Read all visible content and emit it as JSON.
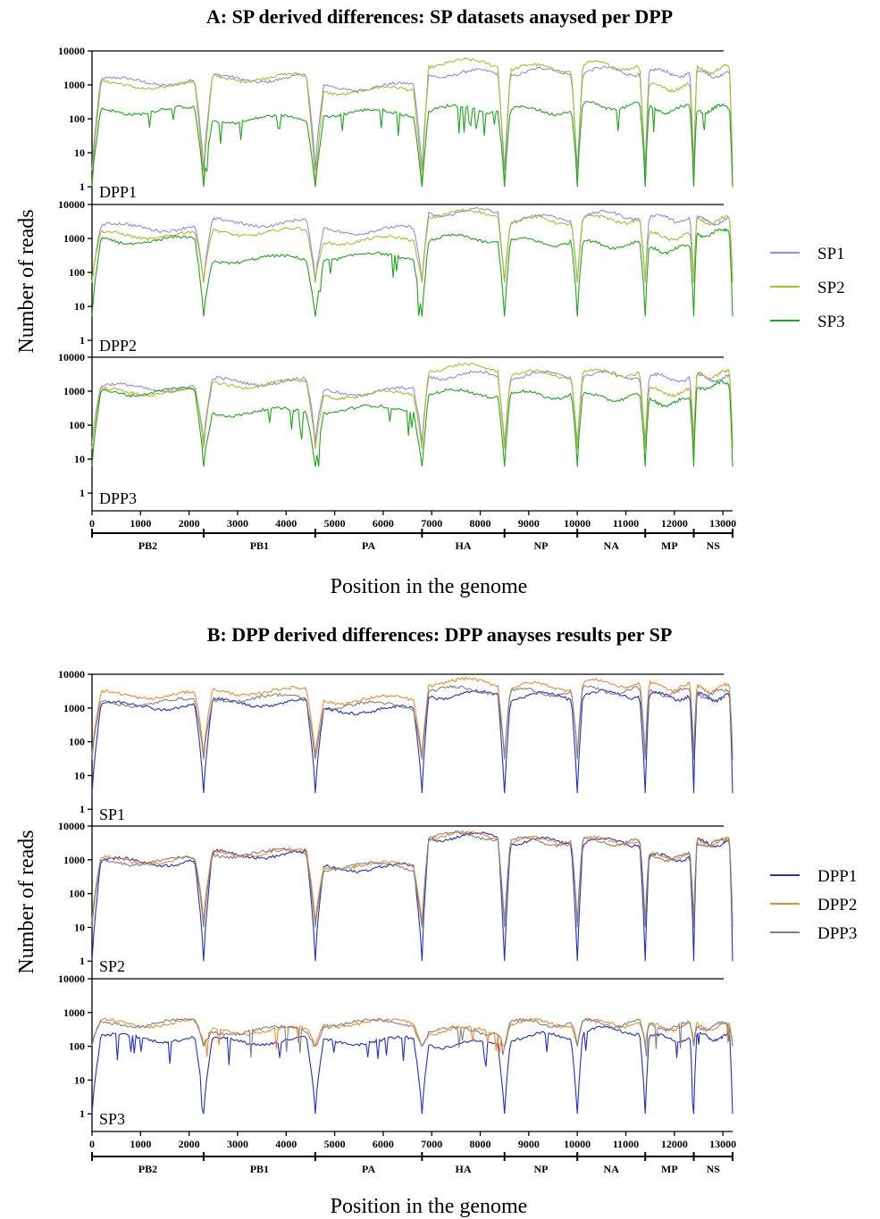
{
  "chart_data": [
    {
      "type": "line",
      "title": "A: SP derived differences: SP datasets anaysed per DPP",
      "xlabel": "Position in the genome",
      "ylabel": "Number of reads",
      "yscale": "log",
      "ylim": [
        0.3,
        10000
      ],
      "xlim": [
        0,
        13200
      ],
      "y_ticks": [
        "1",
        "10",
        "100",
        "1000",
        "10000"
      ],
      "x_ticks": [
        0,
        1000,
        2000,
        3000,
        4000,
        5000,
        6000,
        7000,
        8000,
        9000,
        10000,
        11000,
        12000,
        13000
      ],
      "segments": [
        {
          "name": "PB2",
          "start": 0,
          "end": 2300
        },
        {
          "name": "PB1",
          "start": 2300,
          "end": 4600
        },
        {
          "name": "PA",
          "start": 4600,
          "end": 6800
        },
        {
          "name": "HA",
          "start": 6800,
          "end": 8500
        },
        {
          "name": "NP",
          "start": 8500,
          "end": 10000
        },
        {
          "name": "NA",
          "start": 10000,
          "end": 11400
        },
        {
          "name": "MP",
          "start": 11400,
          "end": 12400
        },
        {
          "name": "NS",
          "start": 12400,
          "end": 13200
        }
      ],
      "legend": [
        "SP1",
        "SP2",
        "SP3"
      ],
      "colors": {
        "SP1": "#8a8ee6",
        "SP2": "#b5b82a",
        "SP3": "#1aa81a"
      },
      "panels": [
        {
          "label": "DPP1",
          "series": [
            {
              "name": "SP1",
              "segment_levels": [
                1300,
                1600,
                900,
                2200,
                2500,
                2600,
                2300,
                2200
              ],
              "edge_min": 3
            },
            {
              "name": "SP2",
              "segment_levels": [
                1000,
                1700,
                700,
                4500,
                3200,
                3800,
                900,
                3000
              ],
              "edge_min": 1
            },
            {
              "name": "SP3",
              "segment_levels": [
                180,
                100,
                150,
                200,
                180,
                250,
                200,
                200
              ],
              "edge_min": 1
            }
          ]
        },
        {
          "label": "DPP2",
          "series": [
            {
              "name": "SP1",
              "segment_levels": [
                2200,
                3000,
                1800,
                6000,
                4000,
                5000,
                4000,
                3500
              ],
              "edge_min": 50
            },
            {
              "name": "SP2",
              "segment_levels": [
                1300,
                1600,
                900,
                5500,
                3500,
                3800,
                1200,
                3500
              ],
              "edge_min": 50
            },
            {
              "name": "SP3",
              "segment_levels": [
                900,
                250,
                300,
                1000,
                800,
                700,
                500,
                1500
              ],
              "edge_min": 5
            }
          ]
        },
        {
          "label": "DPP3",
          "series": [
            {
              "name": "SP1",
              "segment_levels": [
                1300,
                2000,
                1000,
                3000,
                3000,
                3000,
                2500,
                2500
              ],
              "edge_min": 30
            },
            {
              "name": "SP2",
              "segment_levels": [
                1000,
                1700,
                800,
                5000,
                3200,
                3500,
                1000,
                3200
              ],
              "edge_min": 20
            },
            {
              "name": "SP3",
              "segment_levels": [
                1000,
                250,
                300,
                900,
                800,
                700,
                500,
                1500
              ],
              "edge_min": 6
            }
          ]
        }
      ]
    },
    {
      "type": "line",
      "title": "B: DPP derived differences: DPP anayses results per SP",
      "xlabel": "Position in the genome",
      "ylabel": "Number of reads",
      "yscale": "log",
      "ylim": [
        0.3,
        10000
      ],
      "xlim": [
        0,
        13200
      ],
      "y_ticks": [
        "1",
        "10",
        "100",
        "1000",
        "10000"
      ],
      "x_ticks": [
        0,
        1000,
        2000,
        3000,
        4000,
        5000,
        6000,
        7000,
        8000,
        9000,
        10000,
        11000,
        12000,
        13000
      ],
      "segments": [
        {
          "name": "PB2",
          "start": 0,
          "end": 2300
        },
        {
          "name": "PB1",
          "start": 2300,
          "end": 4600
        },
        {
          "name": "PA",
          "start": 4600,
          "end": 6800
        },
        {
          "name": "HA",
          "start": 6800,
          "end": 8500
        },
        {
          "name": "NP",
          "start": 8500,
          "end": 10000
        },
        {
          "name": "NA",
          "start": 10000,
          "end": 11400
        },
        {
          "name": "MP",
          "start": 11400,
          "end": 12400
        },
        {
          "name": "NS",
          "start": 12400,
          "end": 13200
        }
      ],
      "legend": [
        "DPP1",
        "DPP2",
        "DPP3"
      ],
      "colors": {
        "DPP1": "#1f2fd0",
        "DPP2": "#f08a2a",
        "DPP3": "#808080"
      },
      "panels": [
        {
          "label": "SP1",
          "series": [
            {
              "name": "DPP1",
              "segment_levels": [
                1200,
                1500,
                900,
                2500,
                2300,
                2600,
                2300,
                2200
              ],
              "edge_min": 3
            },
            {
              "name": "DPP2",
              "segment_levels": [
                2500,
                3200,
                1800,
                6000,
                4500,
                5500,
                4500,
                4000
              ],
              "edge_min": 40
            },
            {
              "name": "DPP3",
              "segment_levels": [
                1500,
                2000,
                1200,
                3500,
                3000,
                3500,
                3000,
                2800
              ],
              "edge_min": 30
            }
          ]
        },
        {
          "label": "SP2",
          "series": [
            {
              "name": "DPP1",
              "segment_levels": [
                900,
                1500,
                600,
                5000,
                3500,
                3500,
                1200,
                3200
              ],
              "edge_min": 1
            },
            {
              "name": "DPP2",
              "segment_levels": [
                1000,
                1700,
                700,
                5500,
                3700,
                3800,
                1300,
                3500
              ],
              "edge_min": 15
            },
            {
              "name": "DPP3",
              "segment_levels": [
                950,
                1600,
                650,
                5200,
                3600,
                3600,
                1250,
                3300
              ],
              "edge_min": 10
            }
          ]
        },
        {
          "label": "SP3",
          "series": [
            {
              "name": "DPP1",
              "segment_levels": [
                180,
                150,
                150,
                120,
                200,
                300,
                180,
                200
              ],
              "edge_min": 1
            },
            {
              "name": "DPP2",
              "segment_levels": [
                500,
                300,
                500,
                300,
                500,
                500,
                400,
                400
              ],
              "edge_min": 100
            },
            {
              "name": "DPP3",
              "segment_levels": [
                500,
                300,
                500,
                300,
                500,
                500,
                400,
                400
              ],
              "edge_min": 100
            }
          ]
        }
      ]
    }
  ]
}
